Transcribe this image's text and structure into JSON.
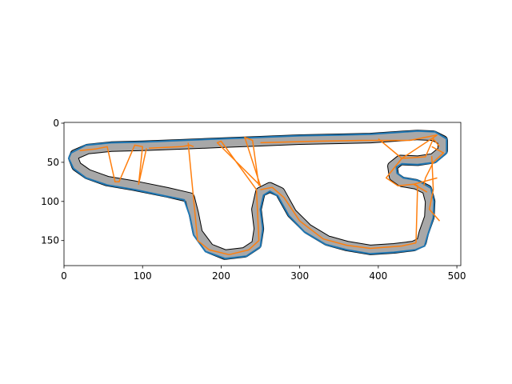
{
  "chart_data": {
    "type": "line",
    "title": "",
    "xlabel": "",
    "ylabel": "",
    "xlim": [
      0,
      505
    ],
    "ylim": [
      182,
      -1
    ],
    "y_inverted": true,
    "grid": false,
    "legend": "none",
    "x_ticks": [
      0,
      100,
      200,
      300,
      400,
      500
    ],
    "y_ticks": [
      0,
      50,
      100,
      150
    ],
    "x_tick_labels": [
      "0",
      "100",
      "200",
      "300",
      "400",
      "500"
    ],
    "y_tick_labels": [
      "0",
      "50",
      "100",
      "150"
    ],
    "colors": {
      "track_fill": "#a8a8a8",
      "track_outline": "#000000",
      "boundary": "#1f77b4",
      "path": "#ff7f0e"
    },
    "track_centerline": [
      [
        14,
        40
      ],
      [
        12,
        45
      ],
      [
        16,
        55
      ],
      [
        30,
        65
      ],
      [
        55,
        74
      ],
      [
        90,
        80
      ],
      [
        130,
        88
      ],
      [
        160,
        95
      ],
      [
        165,
        115
      ],
      [
        170,
        140
      ],
      [
        185,
        160
      ],
      [
        205,
        168
      ],
      [
        230,
        165
      ],
      [
        245,
        155
      ],
      [
        248,
        135
      ],
      [
        245,
        110
      ],
      [
        250,
        88
      ],
      [
        262,
        82
      ],
      [
        275,
        88
      ],
      [
        290,
        115
      ],
      [
        310,
        135
      ],
      [
        335,
        150
      ],
      [
        360,
        157
      ],
      [
        390,
        162
      ],
      [
        420,
        160
      ],
      [
        445,
        157
      ],
      [
        455,
        152
      ],
      [
        458,
        140
      ],
      [
        465,
        120
      ],
      [
        466,
        100
      ],
      [
        462,
        85
      ],
      [
        448,
        78
      ],
      [
        430,
        75
      ],
      [
        420,
        68
      ],
      [
        418,
        55
      ],
      [
        428,
        47
      ],
      [
        450,
        48
      ],
      [
        470,
        45
      ],
      [
        482,
        35
      ],
      [
        482,
        22
      ],
      [
        470,
        16
      ],
      [
        450,
        15
      ],
      [
        420,
        17
      ],
      [
        390,
        19
      ],
      [
        350,
        20
      ],
      [
        300,
        21
      ],
      [
        250,
        23
      ],
      [
        200,
        25
      ],
      [
        150,
        27
      ],
      [
        100,
        29
      ],
      [
        60,
        30
      ],
      [
        30,
        33
      ],
      [
        14,
        40
      ]
    ],
    "boundary": [
      [
        9,
        38
      ],
      [
        6,
        45
      ],
      [
        12,
        58
      ],
      [
        28,
        70
      ],
      [
        55,
        79
      ],
      [
        90,
        85
      ],
      [
        128,
        93
      ],
      [
        153,
        98
      ],
      [
        160,
        118
      ],
      [
        165,
        143
      ],
      [
        180,
        164
      ],
      [
        205,
        173
      ],
      [
        232,
        170
      ],
      [
        250,
        158
      ],
      [
        253,
        135
      ],
      [
        250,
        110
      ],
      [
        254,
        92
      ],
      [
        262,
        87
      ],
      [
        272,
        93
      ],
      [
        286,
        118
      ],
      [
        306,
        139
      ],
      [
        333,
        155
      ],
      [
        360,
        162
      ],
      [
        390,
        167
      ],
      [
        420,
        165
      ],
      [
        447,
        162
      ],
      [
        459,
        157
      ],
      [
        463,
        143
      ],
      [
        470,
        121
      ],
      [
        471,
        100
      ],
      [
        467,
        83
      ],
      [
        450,
        73
      ],
      [
        432,
        70
      ],
      [
        424,
        64
      ],
      [
        423,
        56
      ],
      [
        430,
        52
      ],
      [
        450,
        53
      ],
      [
        473,
        50
      ],
      [
        487,
        38
      ],
      [
        487,
        20
      ],
      [
        472,
        11
      ],
      [
        450,
        10
      ],
      [
        420,
        12
      ],
      [
        390,
        14
      ],
      [
        350,
        15
      ],
      [
        300,
        16
      ],
      [
        250,
        18
      ],
      [
        200,
        20
      ],
      [
        150,
        22
      ],
      [
        100,
        24
      ],
      [
        60,
        25
      ],
      [
        28,
        28
      ],
      [
        9,
        38
      ]
    ],
    "path_segments": [
      [
        [
          20,
          35
        ],
        [
          40,
          33
        ],
        [
          55,
          30
        ],
        [
          65,
          75
        ],
        [
          70,
          75
        ],
        [
          90,
          28
        ],
        [
          100,
          30
        ],
        [
          95,
          78
        ],
        [
          105,
          32
        ]
      ],
      [
        [
          108,
          32
        ],
        [
          150,
          30
        ],
        [
          160,
          28
        ],
        [
          165,
          30
        ]
      ],
      [
        [
          158,
          25
        ],
        [
          170,
          150
        ],
        [
          185,
          162
        ],
        [
          210,
          168
        ],
        [
          235,
          162
        ],
        [
          248,
          150
        ],
        [
          245,
          85
        ]
      ],
      [
        [
          245,
          85
        ],
        [
          200,
          23
        ],
        [
          195,
          25
        ],
        [
          250,
          80
        ],
        [
          230,
          18
        ],
        [
          240,
          22
        ],
        [
          248,
          80
        ]
      ],
      [
        [
          250,
          85
        ],
        [
          265,
          82
        ],
        [
          280,
          95
        ],
        [
          300,
          125
        ],
        [
          330,
          148
        ],
        [
          360,
          156
        ],
        [
          390,
          160
        ],
        [
          430,
          157
        ],
        [
          448,
          153
        ]
      ],
      [
        [
          448,
          153
        ],
        [
          450,
          80
        ],
        [
          445,
          78
        ],
        [
          462,
          88
        ]
      ],
      [
        [
          250,
          25
        ],
        [
          320,
          23
        ],
        [
          380,
          22
        ],
        [
          440,
          22
        ],
        [
          460,
          18
        ],
        [
          475,
          15
        ]
      ],
      [
        [
          475,
          15
        ],
        [
          430,
          45
        ],
        [
          410,
          70
        ],
        [
          425,
          80
        ],
        [
          445,
          78
        ],
        [
          475,
          70
        ]
      ],
      [
        [
          400,
          20
        ],
        [
          430,
          45
        ],
        [
          460,
          43
        ],
        [
          470,
          20
        ],
        [
          478,
          30
        ]
      ],
      [
        [
          468,
          42
        ],
        [
          470,
          85
        ],
        [
          465,
          110
        ],
        [
          478,
          125
        ]
      ],
      [
        [
          468,
          30
        ],
        [
          483,
          38
        ],
        [
          470,
          50
        ],
        [
          460,
          70
        ],
        [
          458,
          80
        ]
      ]
    ]
  }
}
